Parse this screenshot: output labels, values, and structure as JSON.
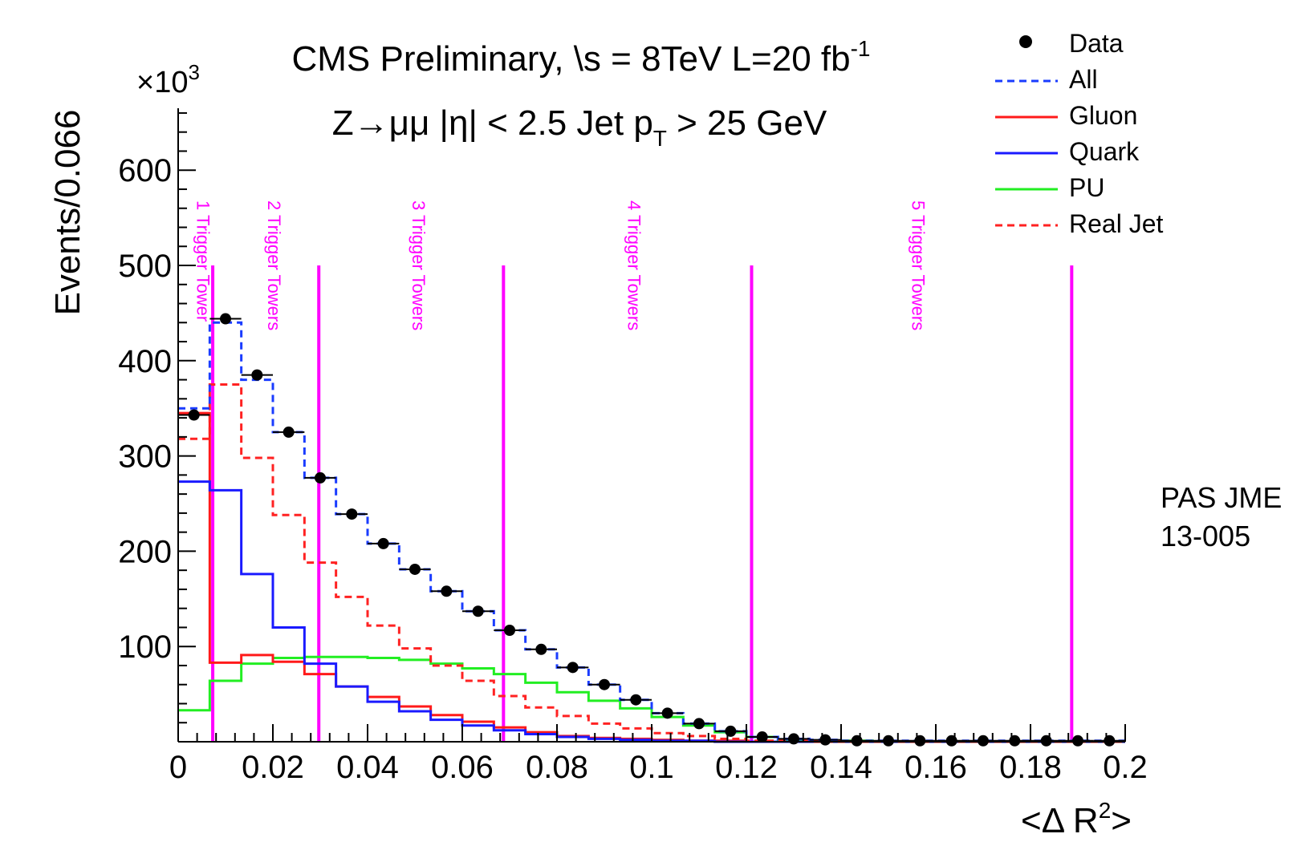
{
  "chart_data": {
    "type": "histogram",
    "title": "CMS Preliminary, \\s = 8TeV L=20 fb-1",
    "title_parts": {
      "pre": "CMS Preliminary, \\s = 8TeV L=20 fb",
      "sup": "-1"
    },
    "subtitle": "Z→μμ   |η|  < 2.5  Jet pT > 25 GeV",
    "subtitle_parts": {
      "pre": "Z→μμ   |η|  < 2.5  Jet p",
      "sub": "T",
      "post": " > 25 GeV"
    },
    "xlabel": "<Δ R2>",
    "xlabel_parts": {
      "pre": "<Δ R",
      "sup": "2",
      "post": ">"
    },
    "ylabel": "Events/0.066",
    "y_multiplier": "×103",
    "y_multiplier_parts": {
      "pre": "×10",
      "sup": "3"
    },
    "xlim": [
      0,
      0.2
    ],
    "ylim": [
      0,
      665
    ],
    "xticks": [
      0,
      0.02,
      0.04,
      0.06,
      0.08,
      0.1,
      0.12,
      0.14,
      0.16,
      0.18,
      0.2
    ],
    "xtick_labels": [
      "0",
      "0.02",
      "0.04",
      "0.06",
      "0.08",
      "0.1",
      "0.12",
      "0.14",
      "0.16",
      "0.18",
      "0.2"
    ],
    "yticks": [
      100,
      200,
      300,
      400,
      500,
      600
    ],
    "ytick_labels": [
      "100",
      "200",
      "300",
      "400",
      "500",
      "600"
    ],
    "bin_edges": [
      0,
      0.00667,
      0.01333,
      0.02,
      0.02667,
      0.03333,
      0.04,
      0.04667,
      0.05333,
      0.06,
      0.06667,
      0.07333,
      0.08,
      0.08667,
      0.09333,
      0.1,
      0.10667,
      0.11333,
      0.12,
      0.12667,
      0.13333,
      0.14,
      0.14667,
      0.15333,
      0.16,
      0.16667,
      0.17333,
      0.18,
      0.18667,
      0.19333,
      0.2
    ],
    "series": [
      {
        "name": "Data",
        "style": "points",
        "color": "#000000",
        "values": [
          343,
          444,
          385,
          325,
          277,
          239,
          208,
          181,
          158,
          137,
          117,
          97,
          78,
          60,
          44,
          30,
          19,
          11,
          5,
          3,
          2,
          1,
          1,
          1,
          1,
          1,
          1,
          1,
          1,
          1
        ]
      },
      {
        "name": "All",
        "style": "dashed",
        "color": "#1a3cff",
        "values": [
          350,
          440,
          380,
          325,
          277,
          239,
          208,
          181,
          158,
          137,
          117,
          97,
          78,
          60,
          44,
          30,
          19,
          11,
          5,
          3,
          2,
          1,
          1,
          1,
          1,
          1,
          1,
          1,
          1,
          1
        ]
      },
      {
        "name": "Gluon",
        "style": "solid",
        "color": "#ff1a1a",
        "values": [
          345,
          83,
          91,
          84,
          71,
          58,
          47,
          37,
          28,
          21,
          15,
          10,
          6,
          4,
          3,
          2,
          1,
          1,
          0,
          0,
          0,
          0,
          0,
          0,
          0,
          0,
          0,
          0,
          0,
          0
        ]
      },
      {
        "name": "Quark",
        "style": "solid",
        "color": "#1a1aff",
        "values": [
          273,
          264,
          176,
          120,
          82,
          58,
          42,
          32,
          23,
          17,
          12,
          8,
          5,
          3,
          2,
          1,
          1,
          0,
          0,
          0,
          0,
          0,
          0,
          0,
          0,
          0,
          0,
          0,
          0,
          0
        ]
      },
      {
        "name": "PU",
        "style": "solid",
        "color": "#22ee22",
        "values": [
          33,
          64,
          82,
          88,
          89,
          89,
          88,
          86,
          82,
          77,
          71,
          62,
          52,
          43,
          35,
          26,
          17,
          10,
          5,
          2,
          1,
          1,
          0,
          0,
          0,
          0,
          0,
          0,
          0,
          0
        ]
      },
      {
        "name": "Real Jet",
        "style": "dashed",
        "color": "#ff2222",
        "values": [
          318,
          375,
          298,
          238,
          188,
          152,
          122,
          98,
          80,
          64,
          48,
          36,
          27,
          19,
          14,
          9,
          6,
          3,
          1,
          1,
          0,
          0,
          0,
          0,
          0,
          0,
          0,
          0,
          0,
          0
        ]
      }
    ],
    "trigger_lines": {
      "x": [
        0.0073,
        0.0297,
        0.0687,
        0.1211,
        0.1887
      ],
      "color": "#ff00ff",
      "labels": [
        {
          "text": "1 Trigger Tower",
          "x": 0.004
        },
        {
          "text": "2 Trigger Towers",
          "x": 0.019
        },
        {
          "text": "3 Trigger Towers",
          "x": 0.0495
        },
        {
          "text": "4 Trigger Towers",
          "x": 0.095
        },
        {
          "text": "5 Trigger Towers",
          "x": 0.155
        }
      ]
    },
    "legend_placement": "top-right",
    "grid": false
  },
  "side_note": {
    "line1": "PAS JME",
    "line2": "13-005"
  }
}
